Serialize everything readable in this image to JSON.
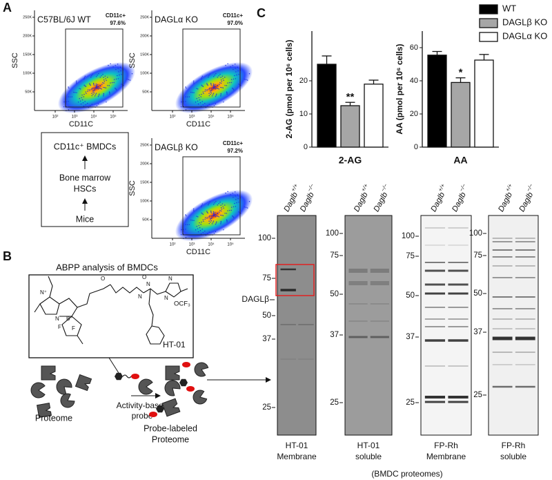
{
  "chart_data": [
    {
      "type": "bar",
      "x_label": "2-AG",
      "y_label": "2-AG (pmol per 10⁶ cells)",
      "categories": [
        "WT",
        "DAGLβ KO",
        "DAGLα KO"
      ],
      "colors": [
        "#000000",
        "#a6a6a6",
        "#ffffff"
      ],
      "values": [
        25,
        12.5,
        19
      ],
      "errors": [
        2.5,
        1,
        1.2
      ],
      "significance": [
        null,
        "**",
        null
      ],
      "ylim": [
        0,
        35
      ],
      "yticks": [
        0,
        10,
        20
      ],
      "legend": true
    },
    {
      "type": "bar",
      "x_label": "AA",
      "y_label": "AA (pmol per 10⁶ cells)",
      "categories": [
        "WT",
        "DAGLβ KO",
        "DAGLα KO"
      ],
      "colors": [
        "#000000",
        "#a6a6a6",
        "#ffffff"
      ],
      "values": [
        55.5,
        39,
        52.5
      ],
      "errors": [
        2.2,
        2.8,
        3.4
      ],
      "significance": [
        null,
        "*",
        null
      ],
      "ylim": [
        0,
        70
      ],
      "yticks": [
        0,
        20,
        40,
        60
      ],
      "legend": false
    }
  ],
  "figure": {
    "panel_labels": [
      "A",
      "B",
      "C"
    ],
    "flow": {
      "plots": [
        {
          "title": "C57BL/6J WT",
          "gate_label": "CD11c+",
          "percent": "97.6%"
        },
        {
          "title": "DAGLα KO",
          "gate_label": "CD11c+",
          "percent": "97.0%"
        },
        {
          "title": "DAGLβ KO",
          "gate_label": "CD11c+",
          "percent": "97.2%"
        }
      ],
      "x_label": "CD11C",
      "y_label": "SSC",
      "x_ticks": [
        "10²",
        "10³",
        "10⁴",
        "10⁵"
      ],
      "y_ticks": [
        "50K",
        "100K",
        "150K",
        "200K",
        "250K"
      ]
    },
    "workflow": [
      "CD11c⁺ BMDCs",
      "Bone marrow",
      "HSCs",
      "Mice"
    ],
    "abpp": {
      "title": "ABPP analysis of BMDCs",
      "probe_name": "HT-01",
      "substituent": "OCF₃",
      "atoms": [
        "N⁺",
        "B⁻",
        "F",
        "F",
        "N",
        "O",
        "N",
        "N",
        "N",
        "N",
        "O"
      ],
      "probe_label": [
        "Activity-based",
        "probe"
      ],
      "proteome_label": "Proteome",
      "labeled_label": [
        "Probe-labeled",
        "Proteome"
      ]
    },
    "gels": {
      "lanes": [
        {
          "gene": "Daglb",
          "genotype": "+/+"
        },
        {
          "gene": "Daglb",
          "genotype": "−/−"
        }
      ],
      "target_label": "DAGLβ",
      "panels": [
        {
          "markers": [
            100,
            75,
            50,
            37,
            25
          ],
          "caption": [
            "HT-01",
            "Membrane"
          ]
        },
        {
          "markers": [
            100,
            75,
            50,
            37,
            25
          ],
          "caption": [
            "HT-01",
            "soluble"
          ]
        },
        {
          "markers": [
            100,
            75,
            50,
            37,
            25
          ],
          "caption": [
            "FP-Rh",
            "Membrane"
          ]
        },
        {
          "markers": [
            100,
            75,
            50,
            37,
            25
          ],
          "caption": [
            "FP-Rh",
            "soluble"
          ]
        }
      ],
      "footer": "(BMDC proteomes)"
    }
  }
}
